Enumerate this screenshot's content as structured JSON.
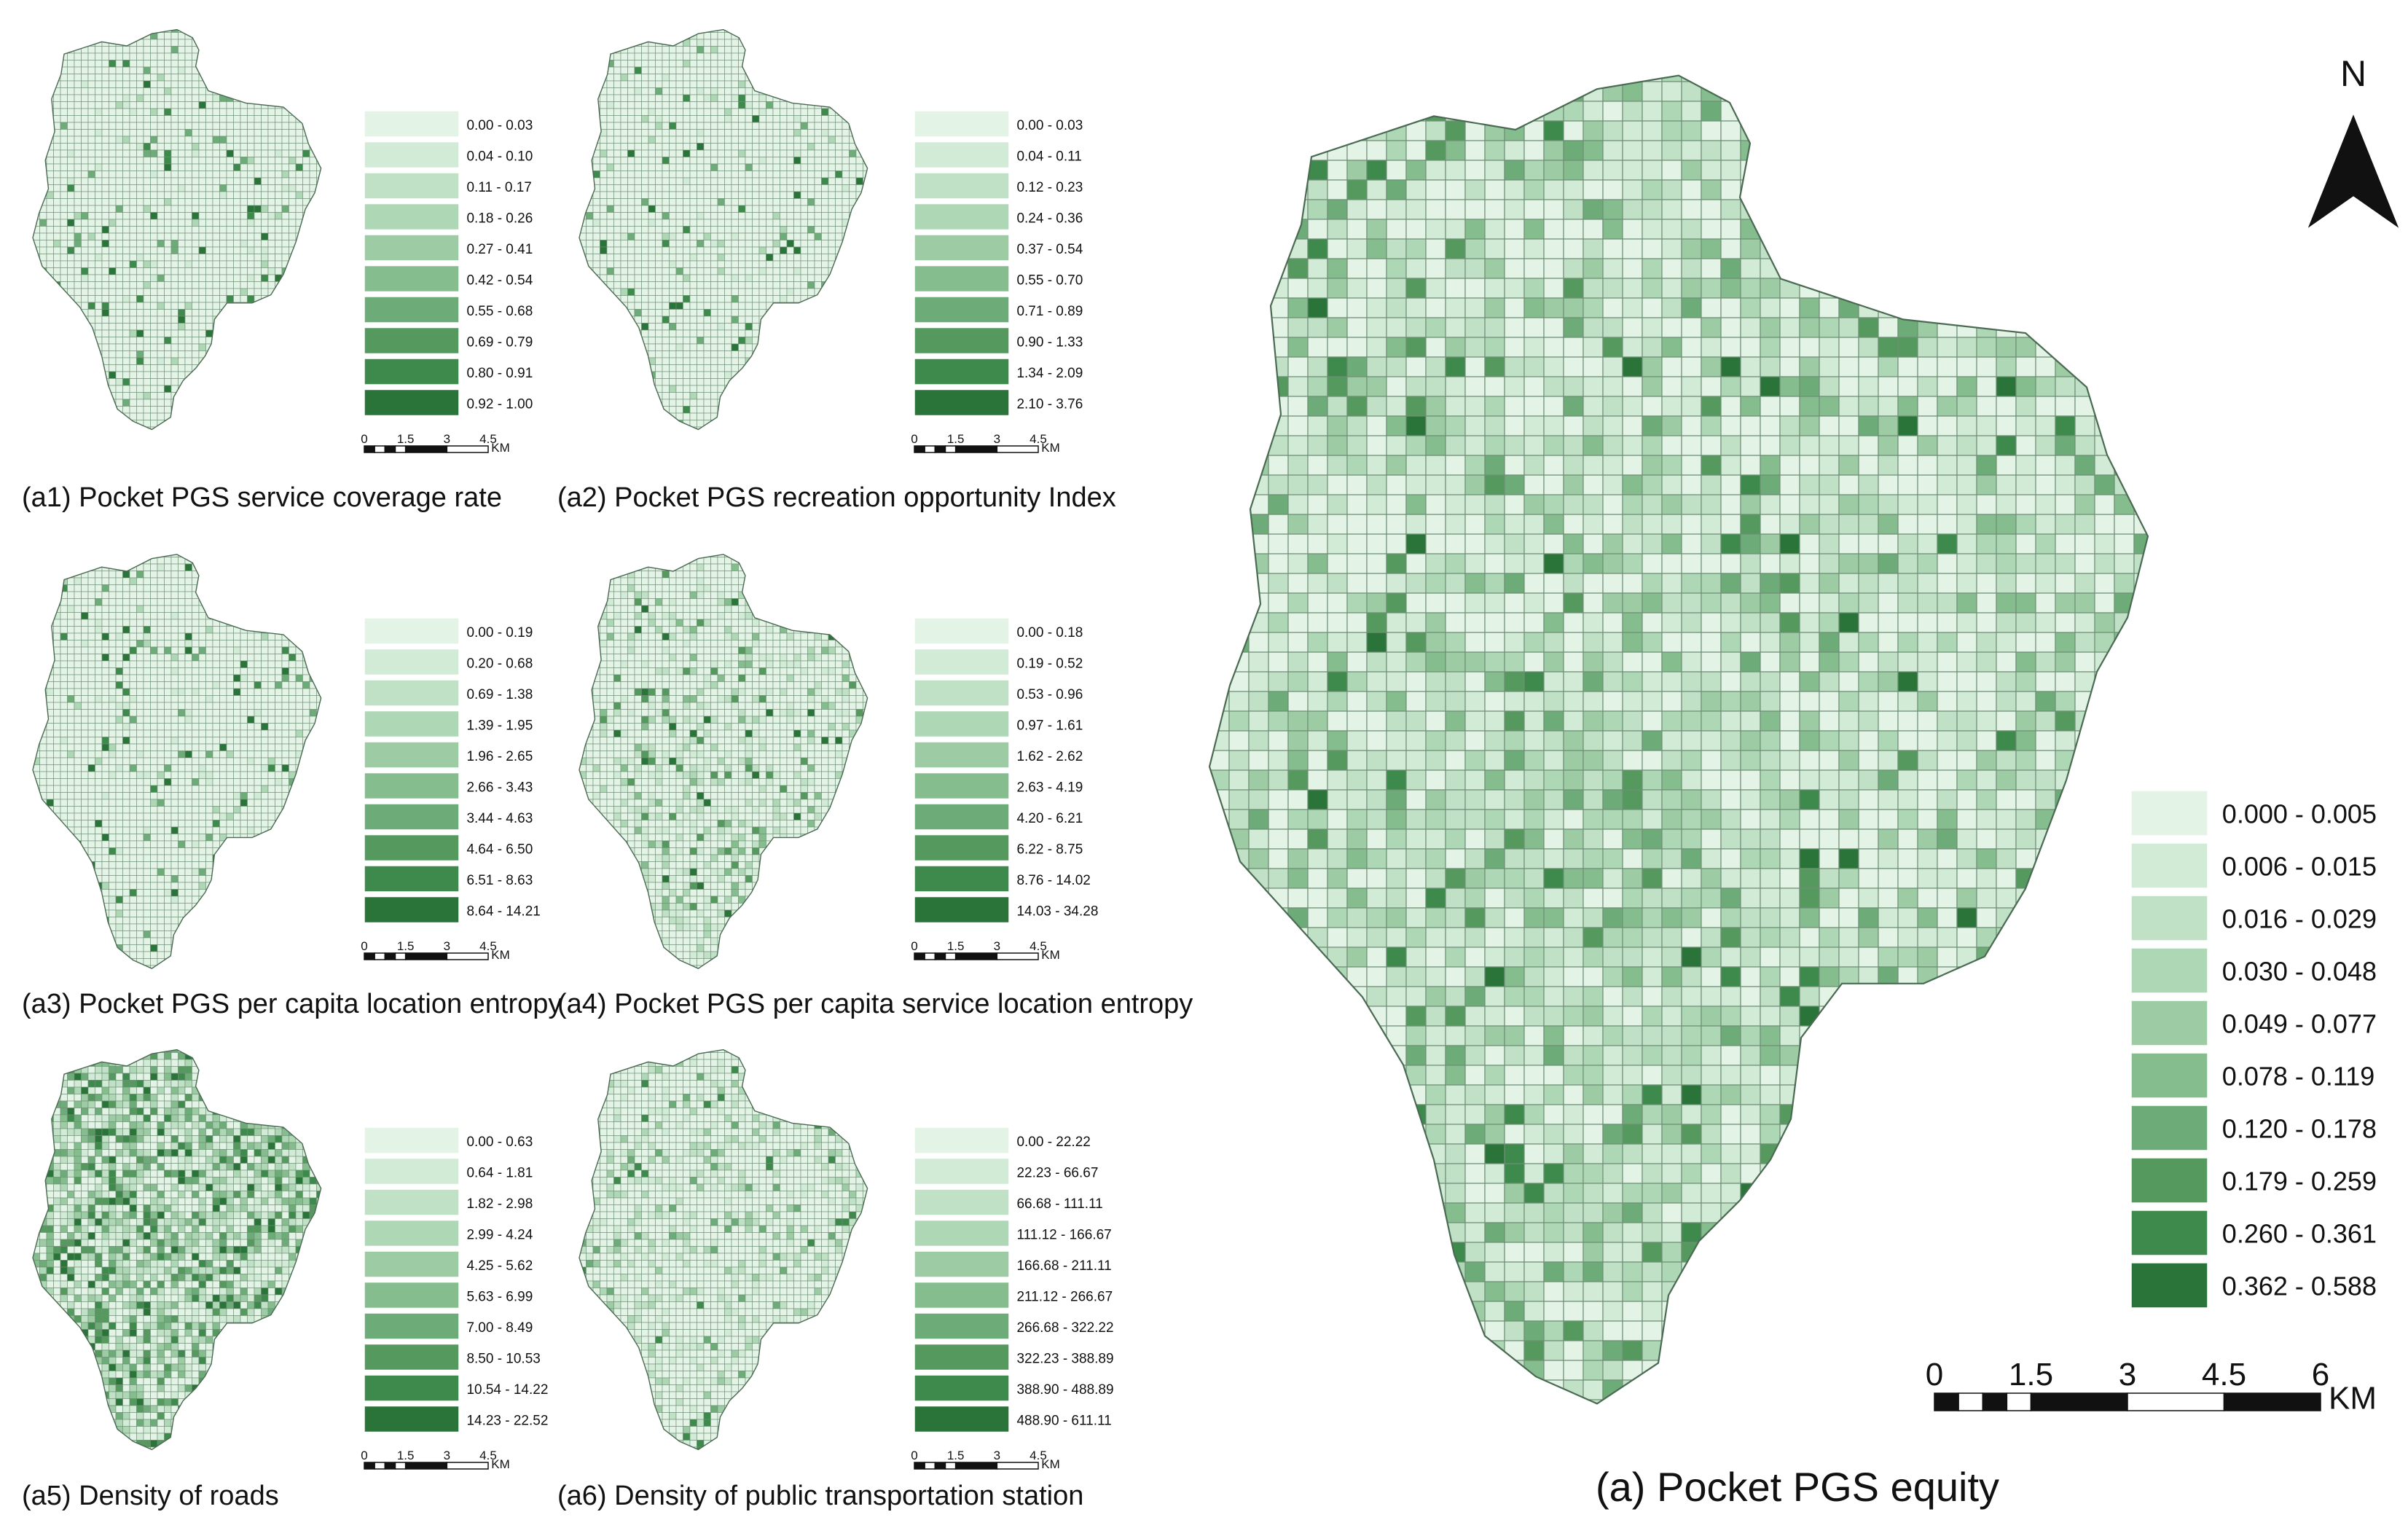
{
  "palette": [
    "#e3f3e6",
    "#d1ebd6",
    "#c0e1c6",
    "#aed7b6",
    "#9ccba4",
    "#85bd8e",
    "#6dac79",
    "#55995f",
    "#3e894c",
    "#2a7339"
  ],
  "north_label": "N",
  "main_map": {
    "caption": "(a)  Pocket PGS equity",
    "legend": [
      "0.000 - 0.005",
      "0.006 - 0.015",
      "0.016 - 0.029",
      "0.030 - 0.048",
      "0.049 - 0.077",
      "0.078 - 0.119",
      "0.120 - 0.178",
      "0.179 - 0.259",
      "0.260 - 0.361",
      "0.362 - 0.588"
    ],
    "scale_ticks": [
      "0",
      "1.5",
      "3",
      "4.5",
      "6"
    ],
    "scale_unit": "KM"
  },
  "small_maps": [
    {
      "id": "a1",
      "caption": "(a1)  Pocket PGS service coverage rate",
      "legend": [
        "0.00 - 0.03",
        "0.04 - 0.10",
        "0.11 - 0.17",
        "0.18 - 0.26",
        "0.27 - 0.41",
        "0.42 - 0.54",
        "0.55 - 0.68",
        "0.69 - 0.79",
        "0.80 - 0.91",
        "0.92 - 1.00"
      ],
      "scale_ticks": [
        "0",
        "1.5",
        "3",
        "4.5"
      ],
      "scale_unit": "KM"
    },
    {
      "id": "a2",
      "caption": "(a2)  Pocket PGS recreation opportunity Index",
      "legend": [
        "0.00 - 0.03",
        "0.04 - 0.11",
        "0.12 - 0.23",
        "0.24 - 0.36",
        "0.37 - 0.54",
        "0.55 - 0.70",
        "0.71 - 0.89",
        "0.90 - 1.33",
        "1.34 - 2.09",
        "2.10 - 3.76"
      ],
      "scale_ticks": [
        "0",
        "1.5",
        "3",
        "4.5"
      ],
      "scale_unit": "KM"
    },
    {
      "id": "a3",
      "caption": "(a3)  Pocket PGS per capita location entropy",
      "legend": [
        "0.00 - 0.19",
        "0.20 - 0.68",
        "0.69 - 1.38",
        "1.39 - 1.95",
        "1.96 - 2.65",
        "2.66 - 3.43",
        "3.44 - 4.63",
        "4.64 - 6.50",
        "6.51 - 8.63",
        "8.64 - 14.21"
      ],
      "scale_ticks": [
        "0",
        "1.5",
        "3",
        "4.5"
      ],
      "scale_unit": "KM"
    },
    {
      "id": "a4",
      "caption": "(a4)  Pocket PGS per capita service location entropy",
      "legend": [
        "0.00 - 0.18",
        "0.19 - 0.52",
        "0.53 - 0.96",
        "0.97 - 1.61",
        "1.62 - 2.62",
        "2.63 - 4.19",
        "4.20 - 6.21",
        "6.22 - 8.75",
        "8.76 - 14.02",
        "14.03 - 34.28"
      ],
      "scale_ticks": [
        "0",
        "1.5",
        "3",
        "4.5"
      ],
      "scale_unit": "KM"
    },
    {
      "id": "a5",
      "caption": "(a5)  Density of roads",
      "legend": [
        "0.00 - 0.63",
        "0.64 - 1.81",
        "1.82 - 2.98",
        "2.99 - 4.24",
        "4.25 - 5.62",
        "5.63 - 6.99",
        "7.00 - 8.49",
        "8.50 - 10.53",
        "10.54 - 14.22",
        "14.23 - 22.52"
      ],
      "scale_ticks": [
        "0",
        "1.5",
        "3",
        "4.5"
      ],
      "scale_unit": "KM"
    },
    {
      "id": "a6",
      "caption": "(a6)  Density of public transportation station",
      "legend": [
        "0.00 - 22.22",
        "22.23 - 66.67",
        "66.68 - 111.11",
        "111.12 - 166.67",
        "166.68 - 211.11",
        "211.12 - 266.67",
        "266.68 - 322.22",
        "322.23 - 388.89",
        "388.90 - 488.89",
        "488.90 - 611.11"
      ],
      "scale_ticks": [
        "0",
        "1.5",
        "3",
        "4.5"
      ],
      "scale_unit": "KM"
    }
  ]
}
